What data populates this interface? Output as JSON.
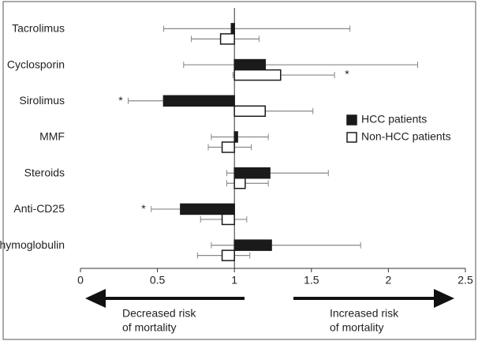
{
  "chart_data": {
    "type": "bar",
    "orientation": "horizontal",
    "base": 1,
    "categories": [
      "Tacrolimus",
      "Cyclosporin",
      "Sirolimus",
      "MMF",
      "Steroids",
      "Anti-CD25",
      "Thymoglobulin"
    ],
    "series": [
      {
        "name": "HCC patients",
        "color": "#1a1a1a",
        "values": [
          0.98,
          1.2,
          0.54,
          1.02,
          1.23,
          0.65,
          1.24
        ],
        "lower": [
          0.54,
          0.67,
          0.31,
          0.85,
          0.95,
          0.46,
          0.85
        ],
        "upper": [
          1.75,
          2.19,
          1.0,
          1.22,
          1.61,
          1.0,
          1.82
        ]
      },
      {
        "name": "Non-HCC patients",
        "color": "#ffffff",
        "values": [
          0.91,
          1.3,
          1.2,
          0.92,
          1.07,
          0.92,
          0.92
        ],
        "lower": [
          0.72,
          0.99,
          1.0,
          0.83,
          0.95,
          0.78,
          0.76
        ],
        "upper": [
          1.16,
          1.65,
          1.51,
          1.11,
          1.22,
          1.08,
          1.1
        ]
      }
    ],
    "annotations": [
      "*",
      "*",
      "*"
    ],
    "xlim": [
      0,
      2.5
    ],
    "xticks": [
      0,
      0.5,
      1,
      1.5,
      2,
      2.5
    ],
    "legend": "right",
    "arrow_labels": {
      "left": [
        "Decreased risk",
        "of mortality"
      ],
      "right": [
        "Increased risk",
        "of mortality"
      ]
    }
  }
}
